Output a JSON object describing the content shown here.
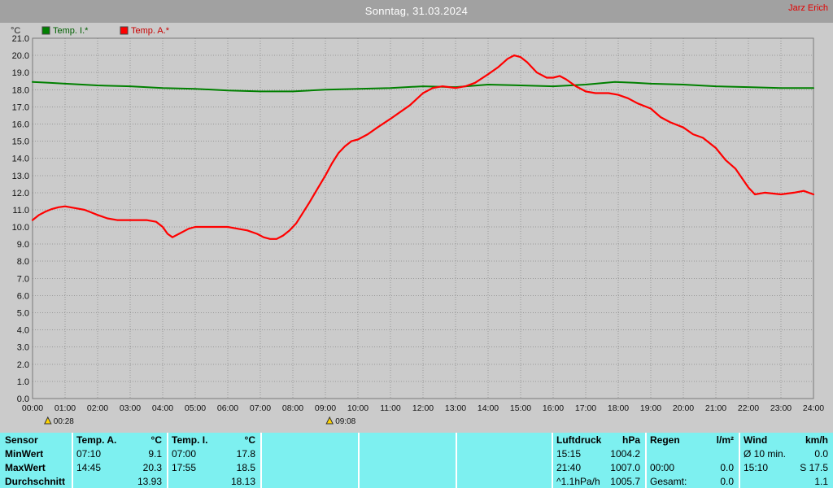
{
  "header": {
    "title": "Sonntag, 31.03.2024",
    "owner": "Jarz Erich"
  },
  "colors": {
    "title_bar_bg": "#a1a1a1",
    "title_text": "#ffffff",
    "owner_text": "#e30000",
    "panel_bg": "#cbcbcb",
    "grid": "#989898",
    "frame": "#787878",
    "table_bg": "#7df0f0",
    "temp_i": "#008000",
    "temp_a": "#ff0000",
    "marker": "#ffd400"
  },
  "chart_data": {
    "type": "line",
    "title": "Sonntag, 31.03.2024",
    "grid": true,
    "legend_position": "top-left",
    "x_axis": {
      "min": 0,
      "max": 24,
      "tick_interval_hours": 1,
      "tick_labels": [
        "00:00",
        "01:00",
        "02:00",
        "03:00",
        "04:00",
        "05:00",
        "06:00",
        "07:00",
        "08:00",
        "09:00",
        "10:00",
        "11:00",
        "12:00",
        "13:00",
        "14:00",
        "15:00",
        "16:00",
        "17:00",
        "18:00",
        "19:00",
        "20:00",
        "21:00",
        "22:00",
        "23:00",
        "24:00"
      ]
    },
    "y_axis": {
      "unit": "°C",
      "min": 0,
      "max": 21,
      "tick_interval": 1,
      "tick_labels": [
        "21.0",
        "20.0",
        "19.0",
        "18.0",
        "17.0",
        "16.0",
        "15.0",
        "14.0",
        "13.0",
        "12.0",
        "11.0",
        "10.0",
        "9.0",
        "8.0",
        "7.0",
        "6.0",
        "5.0",
        "4.0",
        "3.0",
        "2.0",
        "1.0",
        "0.0"
      ]
    },
    "series": [
      {
        "name": "Temp. I.*",
        "color": "#008000",
        "label_color": "#006000",
        "width": 2,
        "points": [
          [
            0,
            18.45
          ],
          [
            0.5,
            18.4
          ],
          [
            1,
            18.35
          ],
          [
            2,
            18.25
          ],
          [
            3,
            18.2
          ],
          [
            4,
            18.1
          ],
          [
            5,
            18.05
          ],
          [
            6,
            17.95
          ],
          [
            7,
            17.9
          ],
          [
            8,
            17.9
          ],
          [
            9,
            18.0
          ],
          [
            10,
            18.05
          ],
          [
            11,
            18.1
          ],
          [
            12,
            18.2
          ],
          [
            13,
            18.15
          ],
          [
            14,
            18.3
          ],
          [
            15,
            18.25
          ],
          [
            16,
            18.2
          ],
          [
            17,
            18.3
          ],
          [
            17.9,
            18.45
          ],
          [
            18.5,
            18.4
          ],
          [
            19,
            18.35
          ],
          [
            20,
            18.3
          ],
          [
            21,
            18.2
          ],
          [
            22,
            18.15
          ],
          [
            23,
            18.1
          ],
          [
            24,
            18.1
          ]
        ]
      },
      {
        "name": "Temp. A.*",
        "color": "#ff0000",
        "label_color": "#c80000",
        "width": 2.2,
        "points": [
          [
            0,
            10.4
          ],
          [
            0.2,
            10.7
          ],
          [
            0.4,
            10.9
          ],
          [
            0.6,
            11.05
          ],
          [
            0.8,
            11.15
          ],
          [
            1,
            11.2
          ],
          [
            1.3,
            11.1
          ],
          [
            1.6,
            11.0
          ],
          [
            1.8,
            10.85
          ],
          [
            2,
            10.7
          ],
          [
            2.3,
            10.5
          ],
          [
            2.6,
            10.4
          ],
          [
            3,
            10.4
          ],
          [
            3.5,
            10.4
          ],
          [
            3.8,
            10.3
          ],
          [
            4,
            10.0
          ],
          [
            4.15,
            9.6
          ],
          [
            4.3,
            9.4
          ],
          [
            4.5,
            9.6
          ],
          [
            4.8,
            9.9
          ],
          [
            5,
            10.0
          ],
          [
            5.5,
            10.0
          ],
          [
            6,
            10.0
          ],
          [
            6.3,
            9.9
          ],
          [
            6.6,
            9.8
          ],
          [
            6.9,
            9.6
          ],
          [
            7.1,
            9.4
          ],
          [
            7.3,
            9.3
          ],
          [
            7.5,
            9.3
          ],
          [
            7.7,
            9.5
          ],
          [
            7.9,
            9.8
          ],
          [
            8.1,
            10.2
          ],
          [
            8.3,
            10.8
          ],
          [
            8.5,
            11.4
          ],
          [
            8.75,
            12.2
          ],
          [
            9,
            13.0
          ],
          [
            9.2,
            13.7
          ],
          [
            9.4,
            14.3
          ],
          [
            9.6,
            14.7
          ],
          [
            9.8,
            15.0
          ],
          [
            10,
            15.1
          ],
          [
            10.3,
            15.4
          ],
          [
            10.6,
            15.8
          ],
          [
            11,
            16.3
          ],
          [
            11.3,
            16.7
          ],
          [
            11.6,
            17.1
          ],
          [
            12,
            17.8
          ],
          [
            12.3,
            18.1
          ],
          [
            12.6,
            18.2
          ],
          [
            13,
            18.1
          ],
          [
            13.3,
            18.2
          ],
          [
            13.6,
            18.4
          ],
          [
            14,
            18.9
          ],
          [
            14.3,
            19.3
          ],
          [
            14.6,
            19.8
          ],
          [
            14.8,
            20.0
          ],
          [
            15,
            19.9
          ],
          [
            15.2,
            19.6
          ],
          [
            15.5,
            19.0
          ],
          [
            15.8,
            18.7
          ],
          [
            16,
            18.7
          ],
          [
            16.2,
            18.8
          ],
          [
            16.4,
            18.6
          ],
          [
            16.7,
            18.2
          ],
          [
            17,
            17.9
          ],
          [
            17.3,
            17.8
          ],
          [
            17.7,
            17.8
          ],
          [
            18,
            17.7
          ],
          [
            18.3,
            17.5
          ],
          [
            18.6,
            17.2
          ],
          [
            19,
            16.9
          ],
          [
            19.3,
            16.4
          ],
          [
            19.6,
            16.1
          ],
          [
            20,
            15.8
          ],
          [
            20.3,
            15.4
          ],
          [
            20.6,
            15.2
          ],
          [
            21,
            14.6
          ],
          [
            21.3,
            13.9
          ],
          [
            21.6,
            13.4
          ],
          [
            22,
            12.3
          ],
          [
            22.2,
            11.9
          ],
          [
            22.5,
            12.0
          ],
          [
            23,
            11.9
          ],
          [
            23.4,
            12.0
          ],
          [
            23.7,
            12.1
          ],
          [
            24,
            11.9
          ]
        ]
      }
    ],
    "markers": [
      {
        "label": "00:28",
        "hour": 0.47
      },
      {
        "label": "09:08",
        "hour": 9.13
      }
    ]
  },
  "table": {
    "row_labels": [
      "Sensor",
      "MinWert",
      "MaxWert",
      "Durchschnitt"
    ],
    "columns": [
      {
        "name": "Temp. A.",
        "unit": "°C",
        "min_time": "07:10",
        "min_value": "9.1",
        "max_time": "14:45",
        "max_value": "20.3",
        "avg_label": "",
        "avg_value": "13.93"
      },
      {
        "name": "Temp. I.",
        "unit": "°C",
        "min_time": "07:00",
        "min_value": "17.8",
        "max_time": "17:55",
        "max_value": "18.5",
        "avg_label": "",
        "avg_value": "18.13"
      },
      {
        "name": "",
        "unit": "",
        "min_time": "",
        "min_value": "",
        "max_time": "",
        "max_value": "",
        "avg_label": "",
        "avg_value": ""
      },
      {
        "name": "",
        "unit": "",
        "min_time": "",
        "min_value": "",
        "max_time": "",
        "max_value": "",
        "avg_label": "",
        "avg_value": ""
      },
      {
        "name": "",
        "unit": "",
        "min_time": "",
        "min_value": "",
        "max_time": "",
        "max_value": "",
        "avg_label": "",
        "avg_value": ""
      },
      {
        "name": "Luftdruck",
        "unit": "hPa",
        "min_time": "15:15",
        "min_value": "1004.2",
        "max_time": "21:40",
        "max_value": "1007.0",
        "avg_label": "^1.1hPa/h",
        "avg_value": "1005.7"
      },
      {
        "name": "Regen",
        "unit": "l/m²",
        "min_time": "",
        "min_value": "",
        "max_time": "00:00",
        "max_value": "0.0",
        "avg_label": "Gesamt:",
        "avg_value": "0.0"
      },
      {
        "name": "Wind",
        "unit": "km/h",
        "min_time": "Ø 10 min.",
        "min_value": "0.0",
        "max_time": "15:10",
        "max_value": "S 17.5",
        "avg_label": "",
        "avg_value": "1.1"
      }
    ]
  }
}
